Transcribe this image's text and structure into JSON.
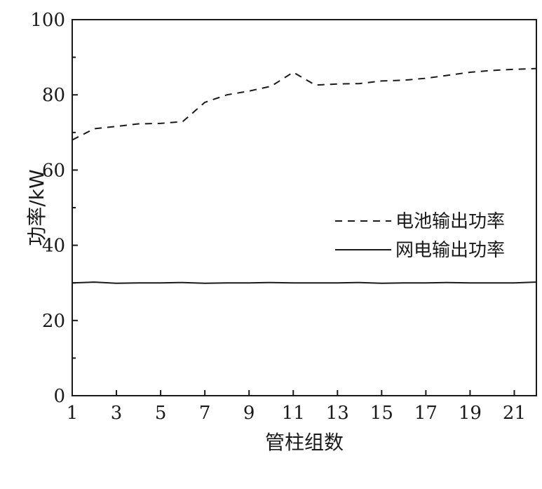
{
  "chart_data": {
    "type": "line",
    "xlabel": "管柱组数",
    "ylabel": "功率/kW",
    "xlim": [
      1,
      22
    ],
    "ylim": [
      0,
      100
    ],
    "xticks": [
      1,
      3,
      5,
      7,
      9,
      11,
      13,
      15,
      17,
      19,
      21
    ],
    "yticks": [
      0,
      20,
      40,
      60,
      80,
      100
    ],
    "grid": false,
    "legend_position": "center-right",
    "x": [
      1,
      2,
      3,
      4,
      5,
      6,
      7,
      8,
      9,
      10,
      11,
      12,
      13,
      14,
      15,
      16,
      17,
      18,
      19,
      20,
      21,
      22
    ],
    "series": [
      {
        "name": "电池输出功率",
        "style": "dashed",
        "color": "#1a1a1a",
        "values": [
          68,
          71,
          71.6,
          72.3,
          72.4,
          72.9,
          78,
          80,
          81,
          82.3,
          86,
          82.6,
          82.9,
          83,
          83.7,
          83.9,
          84.4,
          85.2,
          86,
          86.5,
          86.8,
          87
        ]
      },
      {
        "name": "网电输出功率",
        "style": "solid",
        "color": "#1a1a1a",
        "values": [
          30,
          30.2,
          29.9,
          30,
          30,
          30.1,
          29.9,
          30,
          30,
          30.1,
          30,
          30,
          30,
          30.1,
          29.9,
          30,
          30,
          30.1,
          30,
          30,
          30,
          30.2
        ]
      }
    ]
  }
}
